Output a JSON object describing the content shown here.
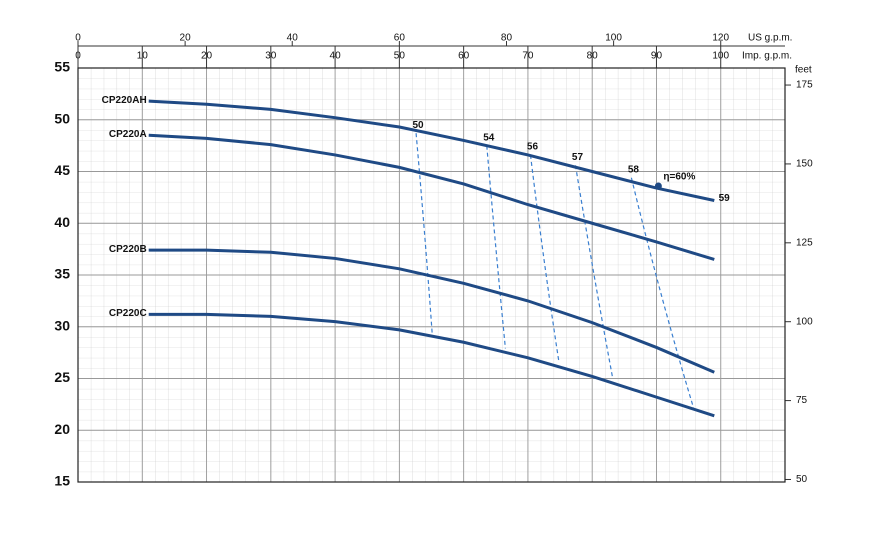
{
  "chart_data": {
    "type": "line",
    "x2_label": "US g.p.m.",
    "x_label": "Imp. g.p.m.",
    "y2_label": "feet",
    "xlim": [
      0,
      110
    ],
    "xticks": [
      0,
      10,
      20,
      30,
      40,
      50,
      60,
      70,
      80,
      90,
      100
    ],
    "x2lim": [
      0,
      132
    ],
    "x2ticks": [
      0,
      20,
      40,
      60,
      80,
      100,
      120
    ],
    "ylim": [
      15,
      55
    ],
    "yticks": [
      15,
      20,
      25,
      30,
      35,
      40,
      45,
      50,
      55
    ],
    "y2lim": [
      49.2,
      180.4
    ],
    "y2ticks": [
      50,
      75,
      100,
      125,
      150,
      175
    ],
    "grid": true,
    "series": [
      {
        "name": "CP220AH",
        "color": "#1f4a85",
        "x": [
          11,
          20,
          30,
          40,
          50,
          60,
          70,
          80,
          90,
          99
        ],
        "values": [
          51.8,
          51.5,
          51.0,
          50.2,
          49.3,
          48.0,
          46.6,
          45.0,
          43.4,
          42.2
        ]
      },
      {
        "name": "CP220A",
        "color": "#1f4a85",
        "x": [
          11,
          20,
          30,
          40,
          50,
          60,
          70,
          80,
          90,
          99
        ],
        "values": [
          48.5,
          48.2,
          47.6,
          46.6,
          45.4,
          43.8,
          41.8,
          40.0,
          38.2,
          36.5
        ]
      },
      {
        "name": "CP220B",
        "color": "#1f4a85",
        "x": [
          11,
          20,
          30,
          40,
          50,
          60,
          70,
          80,
          90,
          99
        ],
        "values": [
          37.4,
          37.4,
          37.2,
          36.6,
          35.6,
          34.2,
          32.5,
          30.4,
          28.0,
          25.6
        ]
      },
      {
        "name": "CP220C",
        "color": "#1f4a85",
        "x": [
          11,
          20,
          30,
          40,
          50,
          60,
          70,
          80,
          90,
          99
        ],
        "values": [
          31.2,
          31.2,
          31.0,
          30.5,
          29.7,
          28.5,
          27.0,
          25.2,
          23.2,
          21.4
        ]
      }
    ],
    "efficiency": [
      {
        "name": "50",
        "color": "#3a7fd0",
        "x": [
          52.6,
          54.0,
          55.1
        ],
        "values": [
          48.7,
          38.9,
          29.4
        ]
      },
      {
        "name": "54",
        "color": "#3a7fd0",
        "x": [
          63.6,
          65.0,
          66.5
        ],
        "values": [
          47.5,
          37.4,
          27.9
        ]
      },
      {
        "name": "56",
        "color": "#3a7fd0",
        "x": [
          70.4,
          72.4,
          74.8
        ],
        "values": [
          46.6,
          36.4,
          26.7
        ]
      },
      {
        "name": "57",
        "color": "#3a7fd0",
        "x": [
          77.4,
          80.2,
          83.2
        ],
        "values": [
          45.6,
          35.0,
          25.0
        ]
      },
      {
        "name": "58",
        "color": "#3a7fd0",
        "x": [
          86.1,
          90.7,
          95.8
        ],
        "values": [
          44.4,
          32.6,
          22.1
        ]
      },
      {
        "name": "59",
        "color": "#3a7fd0",
        "x": [
          99.2
        ],
        "values": [
          42.2
        ]
      }
    ],
    "best_point": {
      "label": "η=60%",
      "x": 90.3,
      "value": 43.6,
      "color": "#1f4a85"
    }
  }
}
